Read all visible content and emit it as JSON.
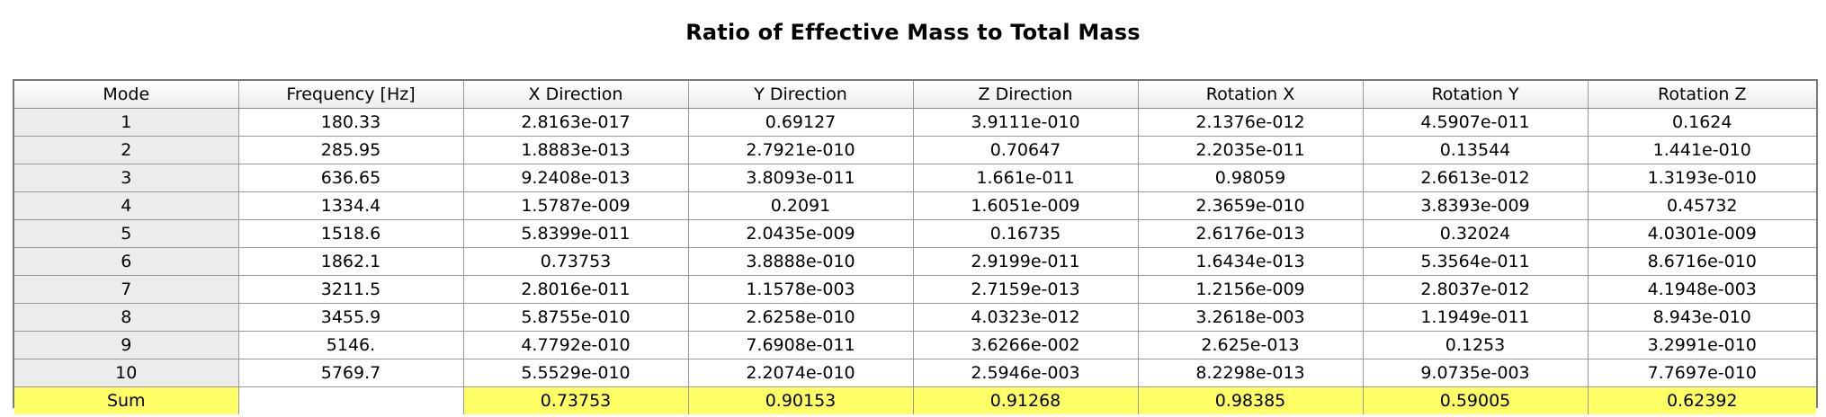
{
  "title": "Ratio of Effective Mass to Total Mass",
  "columns": [
    "Mode",
    "Frequency [Hz]",
    "X Direction",
    "Y Direction",
    "Z Direction",
    "Rotation X",
    "Rotation Y",
    "Rotation Z"
  ],
  "rows": [
    {
      "mode": "1",
      "frequency": "180.33",
      "x": "2.8163e-017",
      "y": "0.69127",
      "z": "3.9111e-010",
      "rx": "2.1376e-012",
      "ry": "4.5907e-011",
      "rz": "0.1624"
    },
    {
      "mode": "2",
      "frequency": "285.95",
      "x": "1.8883e-013",
      "y": "2.7921e-010",
      "z": "0.70647",
      "rx": "2.2035e-011",
      "ry": "0.13544",
      "rz": "1.441e-010"
    },
    {
      "mode": "3",
      "frequency": "636.65",
      "x": "9.2408e-013",
      "y": "3.8093e-011",
      "z": "1.661e-011",
      "rx": "0.98059",
      "ry": "2.6613e-012",
      "rz": "1.3193e-010"
    },
    {
      "mode": "4",
      "frequency": "1334.4",
      "x": "1.5787e-009",
      "y": "0.2091",
      "z": "1.6051e-009",
      "rx": "2.3659e-010",
      "ry": "3.8393e-009",
      "rz": "0.45732"
    },
    {
      "mode": "5",
      "frequency": "1518.6",
      "x": "5.8399e-011",
      "y": "2.0435e-009",
      "z": "0.16735",
      "rx": "2.6176e-013",
      "ry": "0.32024",
      "rz": "4.0301e-009"
    },
    {
      "mode": "6",
      "frequency": "1862.1",
      "x": "0.73753",
      "y": "3.8888e-010",
      "z": "2.9199e-011",
      "rx": "1.6434e-013",
      "ry": "5.3564e-011",
      "rz": "8.6716e-010"
    },
    {
      "mode": "7",
      "frequency": "3211.5",
      "x": "2.8016e-011",
      "y": "1.1578e-003",
      "z": "2.7159e-013",
      "rx": "1.2156e-009",
      "ry": "2.8037e-012",
      "rz": "4.1948e-003"
    },
    {
      "mode": "8",
      "frequency": "3455.9",
      "x": "5.8755e-010",
      "y": "2.6258e-010",
      "z": "4.0323e-012",
      "rx": "3.2618e-003",
      "ry": "1.1949e-011",
      "rz": "8.943e-010"
    },
    {
      "mode": "9",
      "frequency": "5146.",
      "x": "4.7792e-010",
      "y": "7.6908e-011",
      "z": "3.6266e-002",
      "rx": "2.625e-013",
      "ry": "0.1253",
      "rz": "3.2991e-010"
    },
    {
      "mode": "10",
      "frequency": "5769.7",
      "x": "5.5529e-010",
      "y": "2.2074e-010",
      "z": "2.5946e-003",
      "rx": "8.2298e-013",
      "ry": "9.0735e-003",
      "rz": "7.7697e-010"
    }
  ],
  "sum": {
    "label": "Sum",
    "frequency": "",
    "x": "0.73753",
    "y": "0.90153",
    "z": "0.91268",
    "rx": "0.98385",
    "ry": "0.59005",
    "rz": "0.62392"
  },
  "colors": {
    "sum_highlight": "#ffff66",
    "mode_column_bg": "#ececec",
    "grid_border": "#9a9a9a"
  }
}
